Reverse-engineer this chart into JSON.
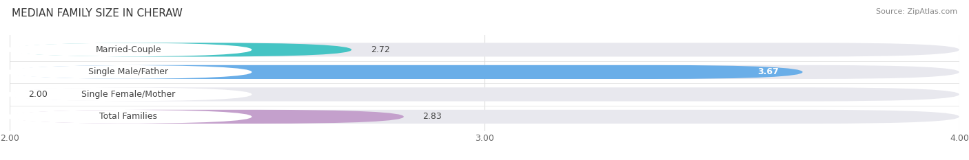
{
  "title": "MEDIAN FAMILY SIZE IN CHERAW",
  "source": "Source: ZipAtlas.com",
  "categories": [
    "Married-Couple",
    "Single Male/Father",
    "Single Female/Mother",
    "Total Families"
  ],
  "values": [
    2.72,
    3.67,
    2.0,
    2.83
  ],
  "bar_colors": [
    "#45C4C4",
    "#6aaee8",
    "#F4A0B0",
    "#C4A0CC"
  ],
  "bar_track_color": "#e8e8ee",
  "label_bg_color": "#ffffff",
  "xlim": [
    2.0,
    4.0
  ],
  "xticks": [
    2.0,
    3.0,
    4.0
  ],
  "xtick_labels": [
    "2.00",
    "3.00",
    "4.00"
  ],
  "label_fontsize": 9,
  "value_fontsize": 9,
  "title_fontsize": 11,
  "source_fontsize": 8,
  "bar_height": 0.62,
  "background_color": "#ffffff",
  "grid_color": "#dddddd",
  "text_color": "#444444"
}
